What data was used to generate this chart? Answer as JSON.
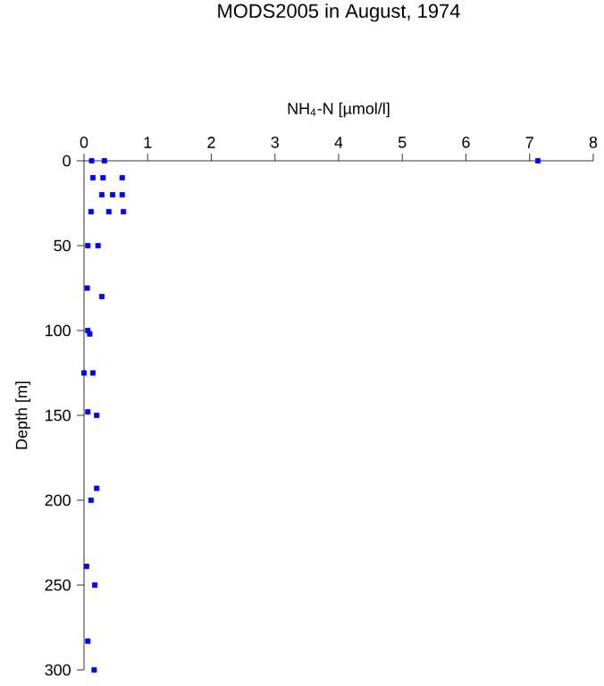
{
  "chart_data": {
    "type": "scatter",
    "title": "MODS2005 in August, 1974",
    "xlabel": "NH$_{4}$-N [µmol/l]",
    "ylabel": "Depth [m]",
    "xlim": [
      0,
      8
    ],
    "xticks": [
      0,
      1,
      2,
      3,
      4,
      5,
      6,
      7,
      8
    ],
    "ylim": [
      300,
      0
    ],
    "yticks": [
      0,
      50,
      100,
      150,
      200,
      250,
      300
    ],
    "grid": false,
    "marker": "square",
    "series": [
      {
        "color": "#0000ff",
        "x": [
          0.12,
          0.32,
          7.13,
          0.14,
          0.3,
          0.6,
          0.28,
          0.45,
          0.6,
          0.11,
          0.39,
          0.62,
          0.06,
          0.22,
          0.05,
          0.28,
          0.06,
          0.09,
          0.0,
          0.14,
          0.06,
          0.2,
          0.2,
          0.11,
          0.04,
          0.17,
          0.06,
          0.16
        ],
        "values": [
          0,
          0,
          0,
          10,
          10,
          10,
          20,
          20,
          20,
          30,
          30,
          30,
          50,
          50,
          75,
          80,
          100,
          102,
          125,
          125,
          148,
          150,
          193,
          200,
          239,
          250,
          283,
          300
        ]
      }
    ]
  }
}
